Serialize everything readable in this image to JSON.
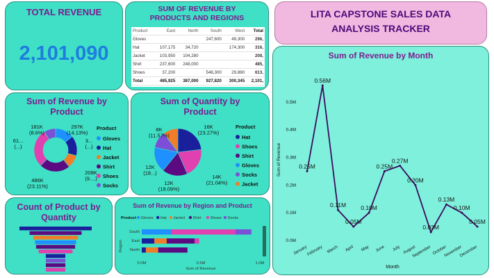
{
  "total_revenue": {
    "title": "TOTAL REVENUE",
    "value": "2,101,090"
  },
  "tracker_title": {
    "line1": "LITA CAPSTONE SALES DATA",
    "line2": "ANALYSIS TRACKER"
  },
  "region_table": {
    "title": "SUM OF REVENUE BY PRODUCTS AND REGIONS",
    "headers": [
      "Product",
      "East",
      "North",
      "South",
      "West",
      "Total"
    ],
    "rows": [
      [
        "Gloves",
        "",
        "",
        "247,600",
        "49,300",
        "296,"
      ],
      [
        "Hat",
        "107,175",
        "34,720",
        "",
        "174,300",
        "316,"
      ],
      [
        "Jacket",
        "103,950",
        "104,280",
        "",
        "",
        "208,"
      ],
      [
        "Shirt",
        "237,600",
        "248,000",
        "",
        "",
        "485,"
      ],
      [
        "Shoes",
        "37,200",
        "",
        "546,300",
        "29,880",
        "613,"
      ]
    ],
    "total": [
      "Total",
      "485,925",
      "387,000",
      "927,820",
      "300,345",
      "2,101,"
    ]
  },
  "revenue_by_product": {
    "title": "Sum of Revenue by Product",
    "legend_title": "Product",
    "legend": [
      "Gloves",
      "Hat",
      "Jacket",
      "Shirt",
      "Shoes",
      "Socks"
    ],
    "colors": [
      "#1e90ff",
      "#1a1f9c",
      "#f07d28",
      "#5b0a82",
      "#e040b0",
      "#7b4fd6"
    ],
    "labels": [
      {
        "value": "181K",
        "sub": "(8.6%)"
      },
      {
        "value": "297K",
        "sub": "(14.13%)"
      },
      {
        "value": "61...",
        "sub": "(...)"
      },
      {
        "value": "3...",
        "sub": "(...)"
      },
      {
        "value": "208K",
        "sub": "(9....)"
      },
      {
        "value": "486K",
        "sub": "(23.11%)"
      }
    ]
  },
  "quantity_by_product": {
    "title": "Sum of Quantity by Product",
    "legend_title": "Product",
    "legend": [
      "Hat",
      "Shoes",
      "Shirt",
      "Gloves",
      "Socks",
      "Jacket"
    ],
    "colors": [
      "#1a1f9c",
      "#e040b0",
      "#5b0a82",
      "#1e90ff",
      "#7b4fd6",
      "#f07d28"
    ],
    "labels": [
      {
        "value": "8K",
        "sub": "(11.57%)"
      },
      {
        "value": "16K",
        "sub": "(23.27%)"
      },
      {
        "value": "12K",
        "sub": "(18...)"
      },
      {
        "value": "14K",
        "sub": "(21.04%)"
      },
      {
        "value": "12K",
        "sub": "(18.09%)"
      }
    ]
  },
  "count_by_quantity": {
    "title": "Count of Product by Quantity"
  },
  "region_product_bar": {
    "title": "Sum of Revenue by Region and Product",
    "legend_title": "Product",
    "legend": [
      "Gloves",
      "Hat",
      "Jacket",
      "Shirt",
      "Shoes",
      "Socks"
    ],
    "y_title": "Region",
    "x_title": "Sum of Revenue",
    "x_ticks": [
      "0.0M",
      "0.5M",
      "1.0M"
    ]
  },
  "revenue_by_month": {
    "title": "Sum of Revenue by Month",
    "y_title": "Sum of Revenue",
    "x_title": "Month",
    "y_ticks": [
      "0.0M",
      "0.1M",
      "0.2M",
      "0.3M",
      "0.4M",
      "0.5M"
    ]
  },
  "chart_data": [
    {
      "type": "pie",
      "title": "Sum of Revenue by Product",
      "categories": [
        "Gloves",
        "Hat",
        "Jacket",
        "Shirt",
        "Shoes",
        "Socks"
      ],
      "values": [
        296900,
        316195,
        208230,
        485600,
        613380,
        180785
      ],
      "colors": [
        "#1e90ff",
        "#1a1f9c",
        "#f07d28",
        "#5b0a82",
        "#e040b0",
        "#7b4fd6"
      ]
    },
    {
      "type": "pie",
      "title": "Sum of Quantity by Product",
      "categories": [
        "Hat",
        "Shoes",
        "Shirt",
        "Gloves",
        "Socks",
        "Jacket"
      ],
      "values": [
        16000,
        14000,
        12000,
        12000,
        8000,
        7000
      ],
      "colors": [
        "#1a1f9c",
        "#e040b0",
        "#5b0a82",
        "#1e90ff",
        "#7b4fd6",
        "#f07d28"
      ]
    },
    {
      "type": "bar",
      "title": "Sum of Revenue by Region and Product",
      "categories": [
        "South",
        "East",
        "North"
      ],
      "series": [
        {
          "name": "Gloves",
          "values": [
            247600,
            0,
            0
          ]
        },
        {
          "name": "Hat",
          "values": [
            0,
            107175,
            34720
          ]
        },
        {
          "name": "Jacket",
          "values": [
            0,
            103950,
            104280
          ]
        },
        {
          "name": "Shirt",
          "values": [
            0,
            237600,
            248000
          ]
        },
        {
          "name": "Shoes",
          "values": [
            546300,
            37200,
            0
          ]
        },
        {
          "name": "Socks",
          "values": [
            133920,
            0,
            0
          ]
        }
      ],
      "colors": [
        "#1e90ff",
        "#1a1f9c",
        "#f07d28",
        "#5b0a82",
        "#e040b0",
        "#7b4fd6"
      ],
      "xlim": [
        0,
        1000000
      ]
    },
    {
      "type": "line",
      "title": "Sum of Revenue by Month",
      "categories": [
        "January",
        "February",
        "March",
        "April",
        "May",
        "June",
        "July",
        "August",
        "September",
        "October",
        "November",
        "December"
      ],
      "values": [
        0.25,
        0.56,
        0.11,
        0.05,
        0.1,
        0.25,
        0.27,
        0.2,
        0.03,
        0.13,
        0.1,
        0.05
      ],
      "labels": [
        "0.25M",
        "0.56M",
        "0.11M",
        "0.05M",
        "0.10M",
        "0.25M",
        "0.27M",
        "0.20M",
        "0.03M",
        "0.13M",
        "0.10M",
        "0.05M"
      ],
      "ylim": [
        0,
        0.58
      ],
      "color": "#3a0a5c"
    },
    {
      "type": "bar",
      "title": "Count of Product by Quantity",
      "values": [
        1,
        0.72,
        0.62,
        0.57,
        0.54,
        0.47,
        0.27,
        0.27,
        0.27,
        0.27
      ],
      "colors": [
        "#1a1f9c",
        "#5b0a82",
        "#f07d28",
        "#1e90ff",
        "#5b0a82",
        "#e040b0",
        "#1a1f9c",
        "#7b4fd6",
        "#5b0a82",
        "#e040b0"
      ]
    }
  ]
}
